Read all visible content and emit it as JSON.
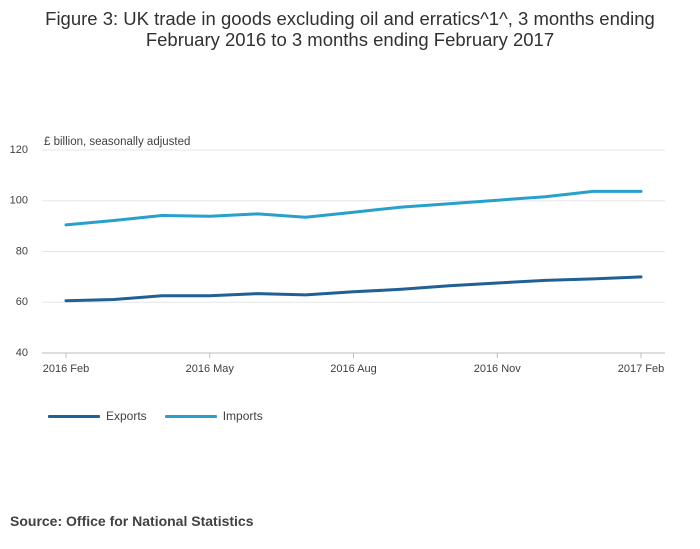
{
  "chart_data": {
    "type": "line",
    "title": "Figure 3: UK trade in goods excluding oil and erratics^1^, 3 months ending February 2016 to 3 months ending February 2017",
    "ylabel": "£ billion, seasonally adjusted",
    "ylim": [
      40,
      120
    ],
    "yticks": [
      40,
      60,
      80,
      100,
      120
    ],
    "x": [
      "2016 Feb",
      "2016 Mar",
      "2016 Apr",
      "2016 May",
      "2016 Jun",
      "2016 Jul",
      "2016 Aug",
      "2016 Sep",
      "2016 Oct",
      "2016 Nov",
      "2016 Dec",
      "2017 Jan",
      "2017 Feb"
    ],
    "xtick_labels": [
      "2016 Feb",
      "2016 May",
      "2016 Aug",
      "2016 Nov",
      "2017 Feb"
    ],
    "grid": true,
    "legend_position": "bottom-left",
    "series": [
      {
        "name": "Exports",
        "color": "#206095",
        "values": [
          60.6,
          61.1,
          62.6,
          62.6,
          63.4,
          62.9,
          64.1,
          65.1,
          66.5,
          67.6,
          68.6,
          69.2,
          70.0
        ]
      },
      {
        "name": "Imports",
        "color": "#27a0cc",
        "values": [
          90.5,
          92.2,
          94.2,
          93.9,
          94.8,
          93.5,
          95.5,
          97.5,
          98.8,
          100.2,
          101.6,
          103.7,
          103.7
        ]
      }
    ]
  },
  "source": "Source: Office for National Statistics"
}
